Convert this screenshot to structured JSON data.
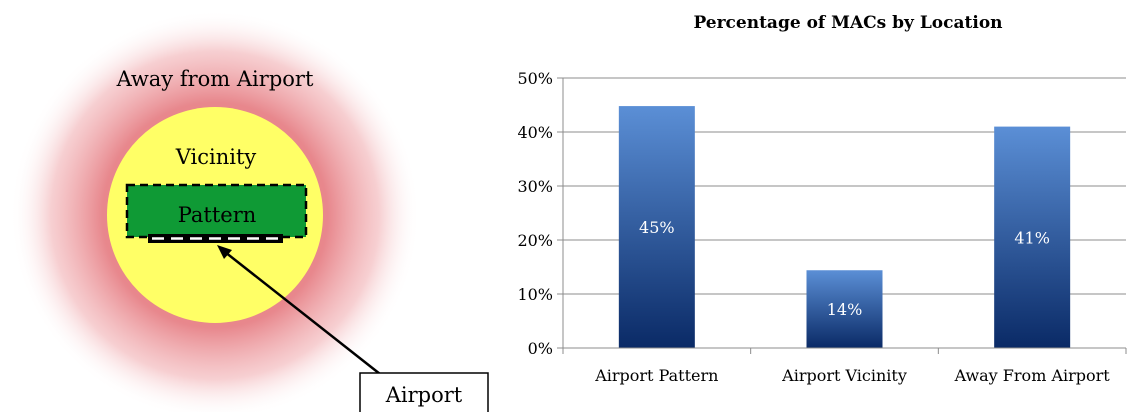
{
  "diagram": {
    "away_label": "Away from Airport",
    "vicinity_label": "Vicinity",
    "pattern_label": "Pattern",
    "airport_label": "Airport",
    "colors": {
      "away_glow": "#e57a80",
      "vicinity_fill": "#ffff66",
      "pattern_fill": "#0f9a35",
      "runway": "#000000"
    }
  },
  "chart_data": {
    "type": "bar",
    "title": "Percentage of MACs by Location",
    "xlabel": "",
    "ylabel": "",
    "categories": [
      "Airport Pattern",
      "Airport Vicinity",
      "Away From Airport"
    ],
    "values": [
      44.8,
      14.4,
      41.0
    ],
    "data_labels": [
      "45%",
      "14%",
      "41%"
    ],
    "yticks": [
      "0%",
      "10%",
      "20%",
      "30%",
      "40%",
      "50%"
    ],
    "ylim": [
      0,
      50
    ],
    "grid": true,
    "legend": "none",
    "bar_color_top": "#5b8fd6",
    "bar_color_bottom": "#0a2a66"
  }
}
